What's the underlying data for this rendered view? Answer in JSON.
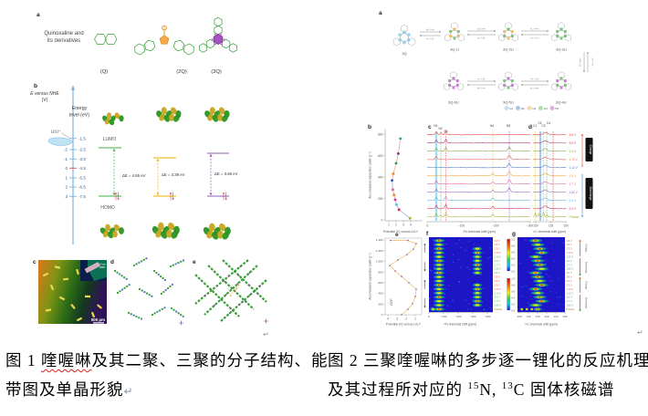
{
  "fig1": {
    "panel_a": {
      "label": "a",
      "intro1": "Quinoxaline and",
      "intro2": "its derivatives",
      "mol_labels": [
        "(Q)",
        "(2Q)",
        "(3Q)"
      ]
    },
    "panel_b": {
      "label": "b",
      "axis1": "E versus NHE",
      "axis2": "(V)",
      "li": "Li/Li⁺",
      "energy1": "Energy",
      "energy2": "level (eV)",
      "nhe_ticks": [
        "-2",
        "-1",
        "0",
        "1",
        "2",
        "3"
      ],
      "ev_ticks": [
        "-1.5",
        "-2.5",
        "-3.5",
        "-4.5",
        "-5.5",
        "-6.5",
        "-7.5"
      ],
      "lumo": "LUMO",
      "homo": "HOMO",
      "gaps": [
        {
          "text": "ΔE = 4.65 eV",
          "color": "#3fae49"
        },
        {
          "text": "ΔE = 3.39 eV",
          "color": "#f2b200"
        },
        {
          "text": "ΔE = 3.66 eV",
          "color": "#8e5bb5"
        }
      ]
    },
    "panel_c": {
      "label": "c",
      "scale_main": "500 μm",
      "scale_inset": "100 μm"
    },
    "panel_d": {
      "label": "d"
    },
    "panel_e": {
      "label": "e",
      "distance": "d = 3.39 Å"
    },
    "pilcrow": "↵",
    "caption": {
      "part1": "图 1 ",
      "misspelled": "喹喔啉",
      "part2": "及其二聚、三聚的分子结构、能",
      "line2": "带图及单晶形貌"
    }
  },
  "fig2": {
    "panel_a": {
      "label": "a",
      "fwd": "+Li⁺/+e⁻",
      "rev": "−e⁻/−Li⁺",
      "top_molecules": [
        {
          "name": "3Q",
          "c1": "#85c7ec",
          "c2": "#85c7ec"
        },
        {
          "name": "3Q-Li",
          "c1": "#f2b24c",
          "c2": "#61b861"
        },
        {
          "name": "3Q-2Li",
          "c1": "#61b861",
          "c2": "#f2b24c"
        },
        {
          "name": "3Q-3Li",
          "c1": "#61b861",
          "c2": "#61b861"
        }
      ],
      "bottom_molecules": [
        {
          "name": "3Q-6Li",
          "c1": "#bb66c8",
          "c2": "#bb66c8"
        },
        {
          "name": "3Q-5Li",
          "c1": "#bb66c8",
          "c2": "#61b861"
        },
        {
          "name": "3Q-4Li",
          "c1": "#61b861",
          "c2": "#bb66c8"
        }
      ],
      "legend": [
        {
          "label": "N1",
          "color": "#85c7ec"
        },
        {
          "label": "N2",
          "color": "#4a90d9"
        },
        {
          "label": "N3",
          "color": "#f2b24c"
        },
        {
          "label": "N4",
          "color": "#61b861"
        },
        {
          "label": "N5",
          "color": "#bb66c8"
        }
      ]
    },
    "panel_b": {
      "label": "b",
      "ylabel": "Accumulated capacities (mAh g⁻¹)",
      "yticks": [
        "800",
        "600",
        "400",
        "200",
        "0"
      ],
      "xticks": [
        "1",
        "2",
        "3",
        "4"
      ],
      "xlabel": "Potential (V) versus Li/Li⁺",
      "points": [
        {
          "v": 3.9,
          "cap": 15,
          "color": "#9ab52a"
        },
        {
          "v": 2.4,
          "cap": 95,
          "color": "#cc2a4a"
        },
        {
          "v": 2.05,
          "cap": 142,
          "color": "#49b8e8"
        },
        {
          "v": 1.88,
          "cap": 188,
          "color": "#d43a9a"
        },
        {
          "v": 1.72,
          "cap": 232,
          "color": "#f08020"
        },
        {
          "v": 1.55,
          "cap": 282,
          "color": "#e8607a"
        },
        {
          "v": 1.45,
          "cap": 368,
          "color": "#2a52b0"
        },
        {
          "v": 1.62,
          "cap": 430,
          "color": "#f08020"
        },
        {
          "v": 2.0,
          "cap": 528,
          "color": "#2a9a50"
        },
        {
          "v": 2.3,
          "cap": 618,
          "color": "#8a2a9a"
        },
        {
          "v": 2.6,
          "cap": 758,
          "color": "#18a8a0"
        }
      ]
    },
    "panel_c": {
      "label": "c",
      "xlabel": "¹⁵N chemical shift (ppm)",
      "xticks": [
        "0",
        "−100",
        "−200",
        "−300"
      ],
      "peak_labels": [
        "N1",
        "N2",
        "N3",
        "N4",
        "N5"
      ],
      "charge": "Charge",
      "discharge": "Discharge",
      "traces": [
        {
          "v": "3.8 V",
          "color": "#e03c30",
          "peaks": [
            "N1",
            "N2",
            "N3"
          ]
        },
        {
          "v": "2.5 V",
          "color": "#b03070",
          "peaks": [
            "N1",
            "N3"
          ]
        },
        {
          "v": "2.3 V",
          "color": "#70a840",
          "peaks": [
            "N1",
            "N3",
            "N5"
          ]
        },
        {
          "v": "1.72 V",
          "color": "#e86050",
          "peaks": [
            "N1",
            "N5"
          ]
        },
        {
          "v": "1.12 V",
          "color": "#4878c0",
          "peaks": [
            "N5"
          ]
        },
        {
          "v": "1.5 V",
          "color": "#f0a030",
          "peaks": [
            "N5",
            "N4"
          ]
        },
        {
          "v": "1.7 V",
          "color": "#e060a0",
          "peaks": [
            "N1",
            "N4",
            "N5"
          ]
        },
        {
          "v": "1.82 V",
          "color": "#9060b0",
          "peaks": [
            "N1",
            "N4",
            "N5"
          ]
        },
        {
          "v": "2.0 V",
          "color": "#58b0d8",
          "peaks": [
            "N1",
            "N3",
            "N4"
          ]
        },
        {
          "v": "2.4 V",
          "color": "#d02848",
          "peaks": [
            "N1",
            "N3",
            "N4"
          ]
        },
        {
          "v": "Pristine",
          "color": "#a0b030",
          "peaks": [
            "N1",
            "N2",
            "N3",
            "N4"
          ]
        }
      ]
    },
    "panel_d": {
      "label": "d",
      "xlabel": "¹³C chemical shift (ppm)",
      "xticks": [
        "150",
        "125",
        "100"
      ],
      "peak_labels": [
        "C1",
        "C2",
        "C3",
        "C4"
      ]
    },
    "panel_e": {
      "label": "e",
      "ylabel": "Accumulated capacities (mAh g⁻¹)",
      "yticks": [
        "1,400",
        "1,200",
        "1,000",
        "800",
        "600",
        "400",
        "200",
        "0"
      ],
      "xticks": [
        "4",
        "3",
        "2",
        "1"
      ],
      "xlabel": "Potential (V) versus Li/Li⁺",
      "gcp": "GCP"
    },
    "panel_f": {
      "label": "f",
      "xlabel": "¹⁵N chemical shift (ppm)",
      "xticks": [
        "0",
        "−100",
        "−200",
        "−300",
        "−400"
      ],
      "colorbar_ticks": [
        "1.0",
        "0.8",
        "0.6",
        "0.4",
        "0.2",
        "0.0"
      ]
    },
    "panel_g": {
      "label": "g",
      "xlabel": "¹³C chemical shift (ppm)",
      "xticks": [
        "150",
        "140",
        "130",
        "120",
        "110",
        "100"
      ],
      "row_labels": [
        "3.8 V",
        "2.5 V",
        "2.3 V",
        "1.72 V",
        "1.12 V",
        "1.5 V",
        "1.7 V",
        "1.82 V",
        "2.0 V",
        "3.8 V",
        "2.5 V",
        "2.3 V",
        "1.72 V",
        "1.12 V",
        "1.5 V",
        "1.7 V",
        "1.82 V",
        "Pristine"
      ],
      "charge": "Charge",
      "discharge": "Discharge"
    },
    "pilcrow": "↵",
    "caption": {
      "line1": "图 2 三聚喹喔啉的多步逐一锂化的反应机理",
      "line2_pre": "及其过程所对应的 ",
      "sup1": "15",
      "mid": "N, ",
      "sup2": "13",
      "tail": "C 固体核磁谱"
    }
  }
}
